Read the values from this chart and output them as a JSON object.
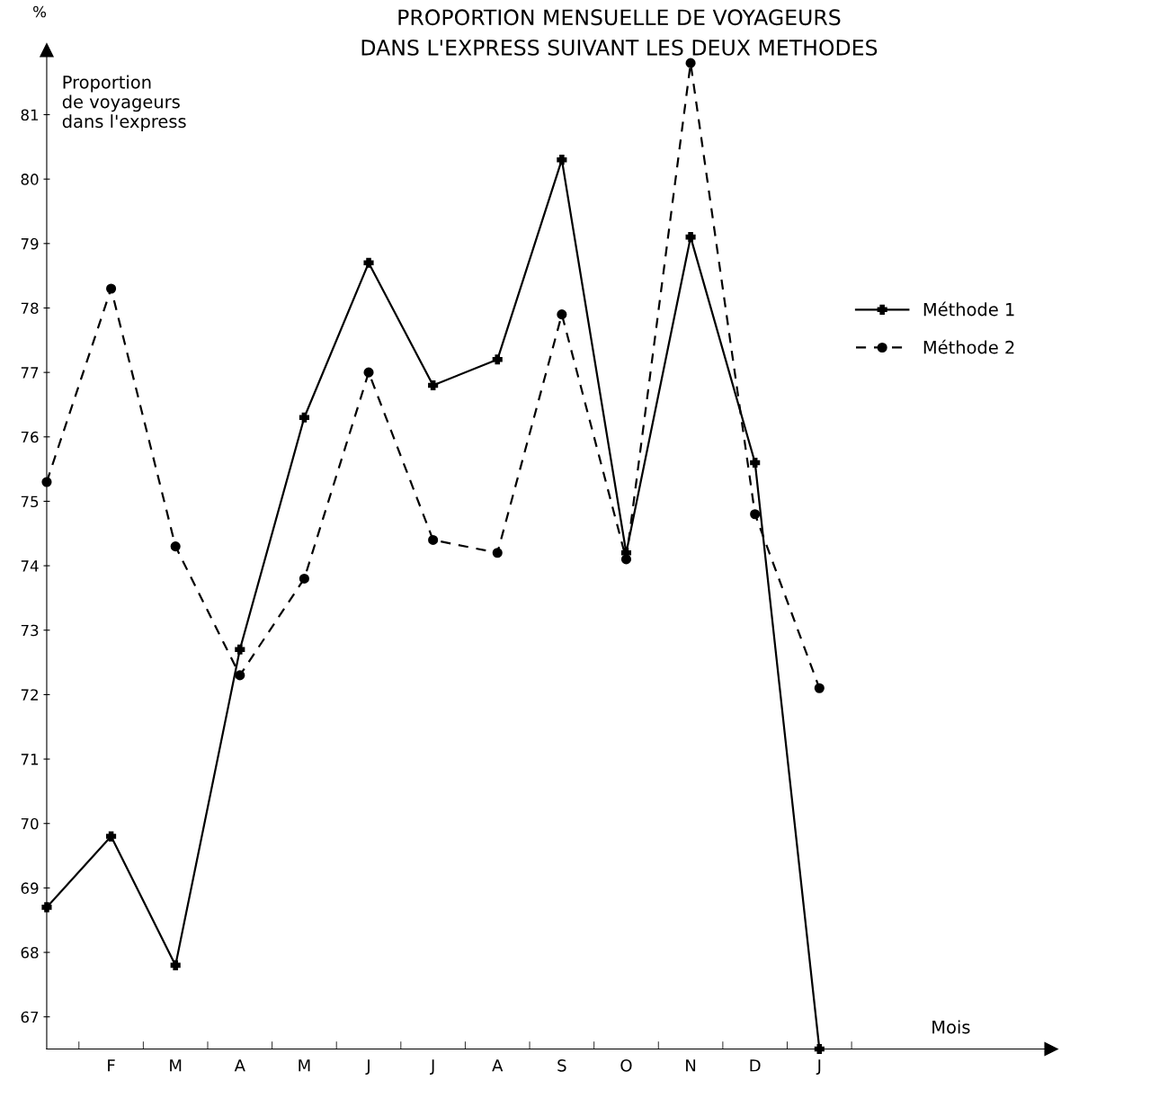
{
  "chart_data": {
    "type": "line",
    "title": "PROPORTION MENSUELLE DE VOYAGEURS\nDANS L'EXPRESS SUIVANT LES DEUX METHODES",
    "ylabel": "Proportion\nde voyageurs\ndans l'express",
    "xlabel": "Mois",
    "annotations": [
      "%"
    ],
    "categories": [
      null,
      "F",
      "M",
      "A",
      "M",
      "J",
      "J",
      "A",
      "S",
      "O",
      "N",
      "D",
      "J"
    ],
    "series": [
      {
        "name": "Méthode 1",
        "color": "#000000",
        "marker": "cross",
        "line_style": "solid",
        "values": [
          68.7,
          69.8,
          67.8,
          72.7,
          76.3,
          78.7,
          76.8,
          77.2,
          80.3,
          74.2,
          79.1,
          75.6,
          66.5
        ]
      },
      {
        "name": "Méthode 2",
        "color": "#000000",
        "marker": "circle",
        "line_style": "dashed",
        "values": [
          75.3,
          78.3,
          74.3,
          72.3,
          73.8,
          77.0,
          74.4,
          74.2,
          77.9,
          74.1,
          81.8,
          74.8,
          72.1
        ]
      }
    ],
    "ylim": [
      66.5,
      82
    ],
    "yticks": [
      67,
      68,
      69,
      70,
      71,
      72,
      73,
      74,
      75,
      76,
      77,
      78,
      79,
      80,
      81
    ],
    "grid": false,
    "legend": "right"
  }
}
